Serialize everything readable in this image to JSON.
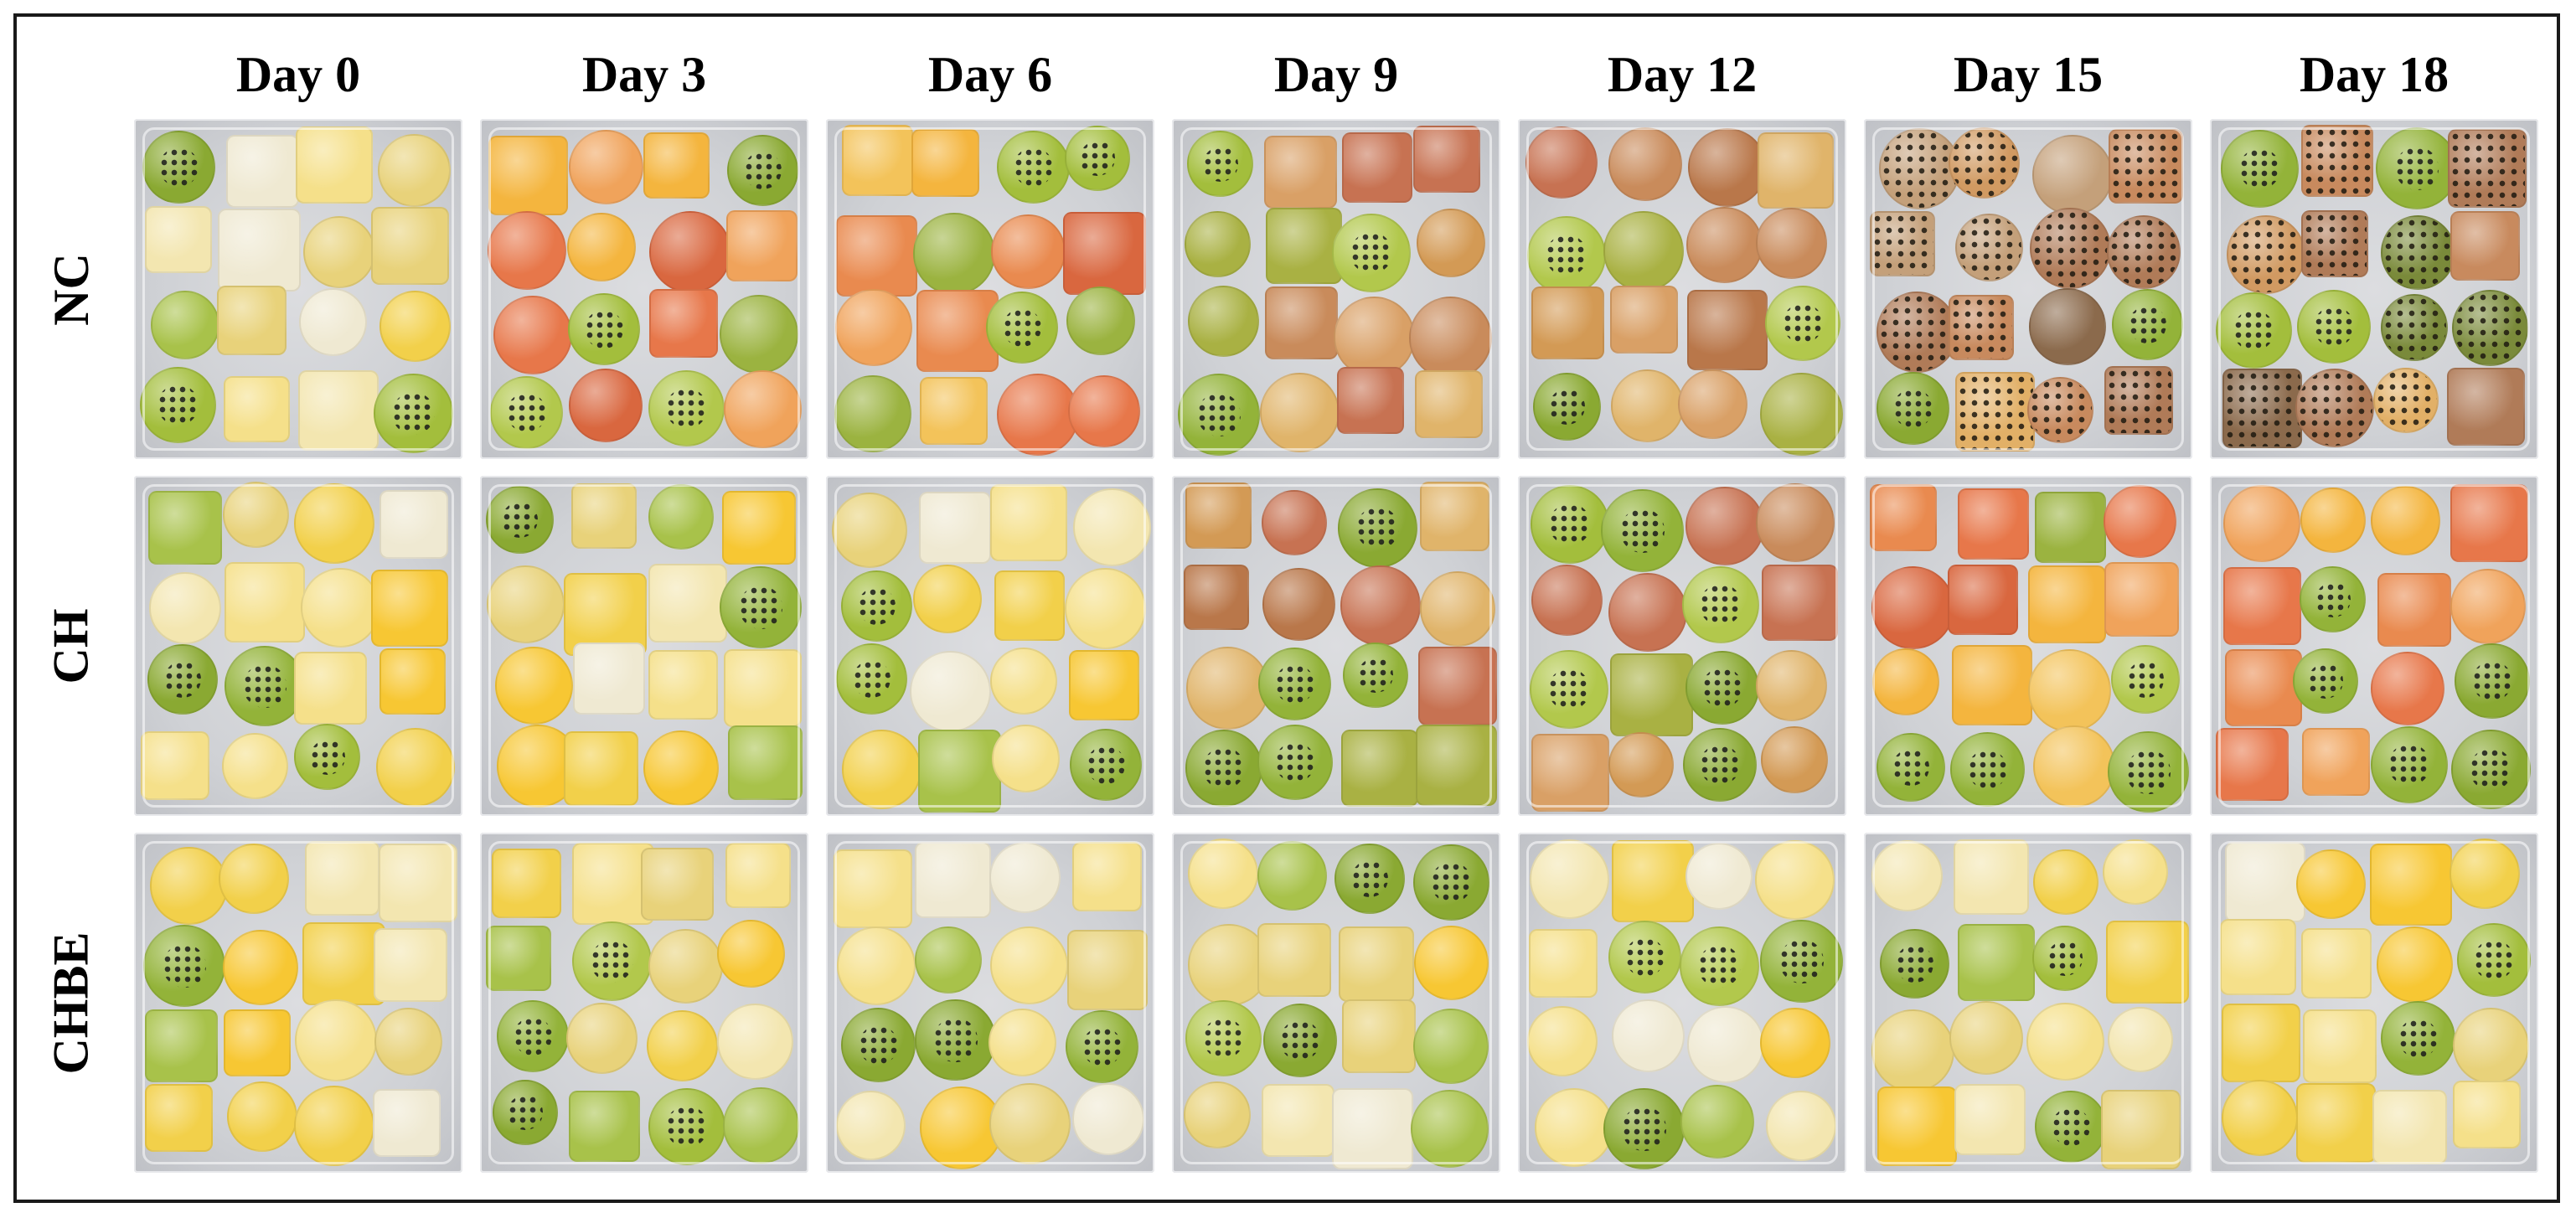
{
  "figure": {
    "columns": [
      "Day 0",
      "Day 3",
      "Day 6",
      "Day 9",
      "Day 12",
      "Day 15",
      "Day 18"
    ],
    "rows": [
      {
        "label": "NC"
      },
      {
        "label": "CH"
      },
      {
        "label": "CHBE"
      }
    ]
  }
}
